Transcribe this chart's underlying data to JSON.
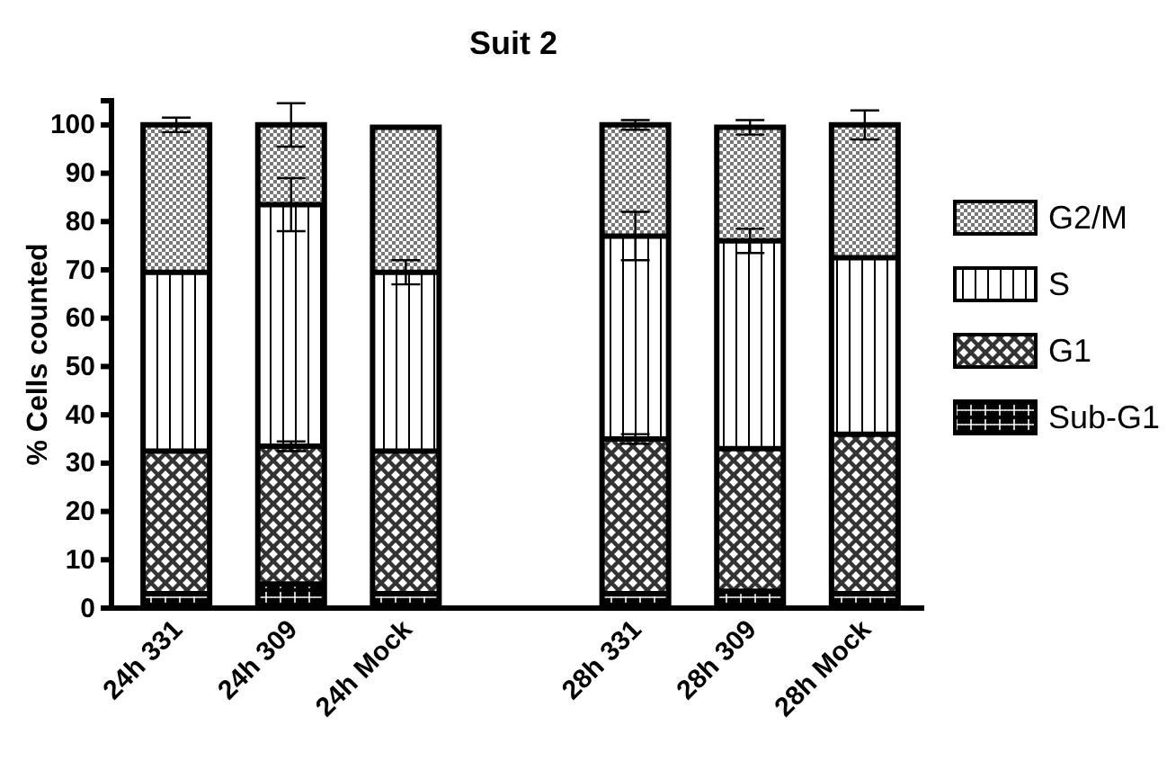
{
  "chart_data": {
    "type": "bar",
    "title": "Suit 2",
    "ylabel": "% Cells counted",
    "stacked": true,
    "categories": [
      "24h 331",
      "24h 309",
      "24h Mock",
      null,
      "28h 331",
      "28h 309",
      "28h Mock"
    ],
    "series": [
      {
        "name": "Sub-G1",
        "color": "#000000",
        "values": [
          3,
          5,
          3,
          null,
          3,
          3.5,
          3
        ]
      },
      {
        "name": "G1",
        "color": "#333333",
        "values": [
          29.5,
          28.5,
          29.5,
          null,
          32,
          29.5,
          33
        ],
        "errors": [
          null,
          1,
          null,
          null,
          1,
          null,
          null
        ]
      },
      {
        "name": "S",
        "color": "#ffffff",
        "values": [
          37,
          50,
          37,
          null,
          42,
          43,
          36.5
        ],
        "errors": [
          null,
          5.5,
          2.5,
          null,
          5,
          2.5,
          null
        ]
      },
      {
        "name": "G2/M",
        "color": "#777777",
        "values": [
          30.5,
          16.5,
          30,
          null,
          23,
          23.5,
          27.5
        ],
        "errors": [
          1.5,
          4.5,
          null,
          null,
          1,
          1.5,
          3
        ]
      }
    ],
    "ylim": [
      0,
      105
    ],
    "yticks": [
      0,
      10,
      20,
      30,
      40,
      50,
      60,
      70,
      80,
      90,
      100
    ],
    "grid": false,
    "legend": "right"
  }
}
